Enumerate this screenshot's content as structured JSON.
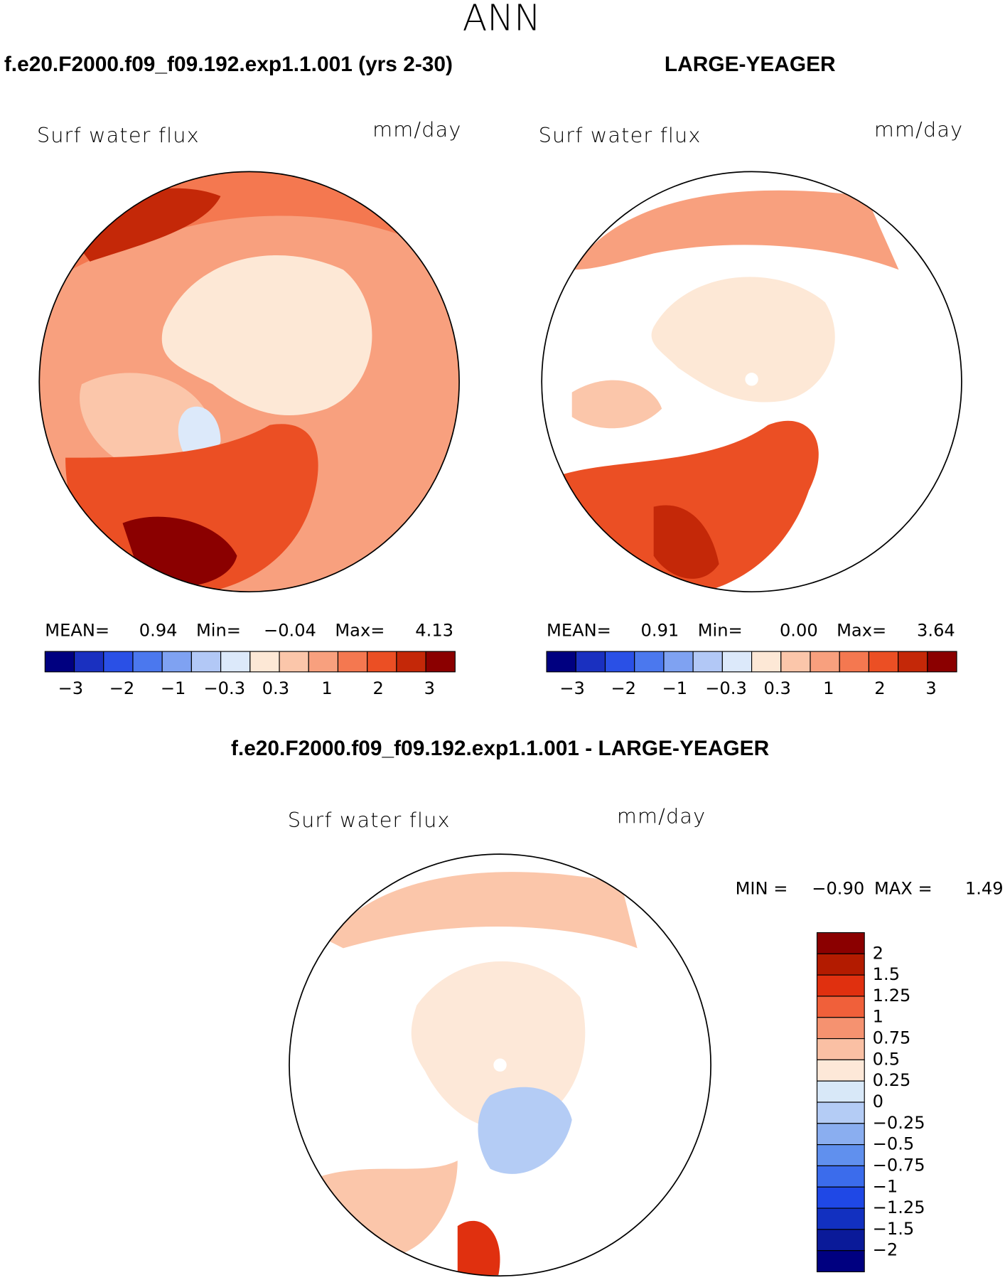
{
  "title": "ANN",
  "panels": [
    {
      "case": "f.e20.F2000.f09_f09.192.exp1.1.001 (yrs 2-30)",
      "variable": "Surf water flux",
      "units": "mm/day",
      "stats": [
        "MEAN=",
        "0.94",
        "Min=",
        "−0.04",
        "Max=",
        "4.13"
      ],
      "colorbar": {
        "colors": [
          "#000080",
          "#1a30c0",
          "#2a50e6",
          "#4b78ee",
          "#7fa2f2",
          "#b2c8f6",
          "#dce9fa",
          "#fde8d6",
          "#fbc6aa",
          "#f8a07e",
          "#f47850",
          "#eb4f24",
          "#c42808",
          "#8b0000"
        ],
        "labels": [
          "−3",
          "−2",
          "−1",
          "−0.3",
          "0.3",
          "1",
          "2",
          "3"
        ]
      }
    },
    {
      "case": "LARGE-YEAGER",
      "variable": "Surf water flux",
      "units": "mm/day",
      "stats": [
        "MEAN=",
        "0.91",
        "Min=",
        "0.00",
        "Max=",
        "3.64"
      ],
      "colorbar": {
        "colors": [
          "#000080",
          "#1a30c0",
          "#2a50e6",
          "#4b78ee",
          "#7fa2f2",
          "#b2c8f6",
          "#dce9fa",
          "#fde8d6",
          "#fbc6aa",
          "#f8a07e",
          "#f47850",
          "#eb4f24",
          "#c42808",
          "#8b0000"
        ],
        "labels": [
          "−3",
          "−2",
          "−1",
          "−0.3",
          "0.3",
          "1",
          "2",
          "3"
        ]
      }
    }
  ],
  "difference": {
    "title": "f.e20.F2000.f09_f09.192.exp1.1.001 - LARGE-YEAGER",
    "variable": "Surf water flux",
    "units": "mm/day",
    "stats": [
      "MIN =",
      "−0.90",
      "MAX =",
      "1.49"
    ],
    "colorbar": {
      "colors": [
        "#8b0000",
        "#b31b00",
        "#e0300f",
        "#f0603a",
        "#f59270",
        "#fac0a4",
        "#fde8d8",
        "#d8e8f8",
        "#b4ccf5",
        "#8aaef0",
        "#6090ee",
        "#3b6cec",
        "#1f48e6",
        "#1230c0",
        "#0a1a99",
        "#000080"
      ],
      "labels": [
        "2",
        "1.5",
        "1.25",
        "1",
        "0.75",
        "0.5",
        "0.25",
        "0",
        "−0.25",
        "−0.5",
        "−0.75",
        "−1",
        "−1.25",
        "−1.5",
        "−2"
      ]
    }
  }
}
